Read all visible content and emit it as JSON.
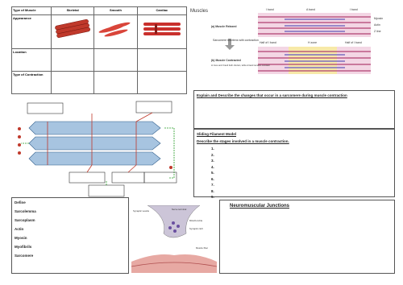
{
  "header": {
    "title": "Muscles"
  },
  "table": {
    "headers": [
      "Type of Muscle",
      "Skeletal",
      "Smooth",
      "Cardiac"
    ],
    "rows": [
      "Appearance",
      "Location",
      "Type of Contraction"
    ]
  },
  "sarcomere": {
    "labels": {
      "i_band_left": "I band",
      "a_band": "A band",
      "i_band_right": "I band",
      "relaxed": "(a) Muscle Relaxed",
      "shortens": "Sarcomere shortens with contraction",
      "contracted": "(b) Muscle Contracted",
      "contracted_note": "H zone and I band both shorten, while A band remains constant",
      "myosin": "Myosin",
      "actin": "Actin",
      "z_line": "Z line",
      "half_i_left": "Half of I band",
      "h_zone": "H zone",
      "half_i_right": "Half of I band"
    }
  },
  "explain": {
    "prompt": "Explain and Describe the changes that occur in a sarcomere during muscle contraction"
  },
  "sliding": {
    "title": "Sliding Filament Model",
    "prompt": "Describe the stages involved in a muscle contraction.",
    "items": [
      "1.",
      "2.",
      "3.",
      "4.",
      "5.",
      "6.",
      "7.",
      "8.",
      "9."
    ]
  },
  "define": {
    "title": "Define",
    "terms": [
      "Sarcolemma",
      "Sarcoplasm",
      "Actin",
      "Myosin",
      "Myofibrils",
      "Sarcomere"
    ]
  },
  "nmj": {
    "title": "Neuromuscular Junctions",
    "labels": [
      "Synaptic vesicle",
      "Nerve terminal",
      "Mitochondria",
      "Synaptic cleft",
      "Muscle fiber"
    ]
  }
}
